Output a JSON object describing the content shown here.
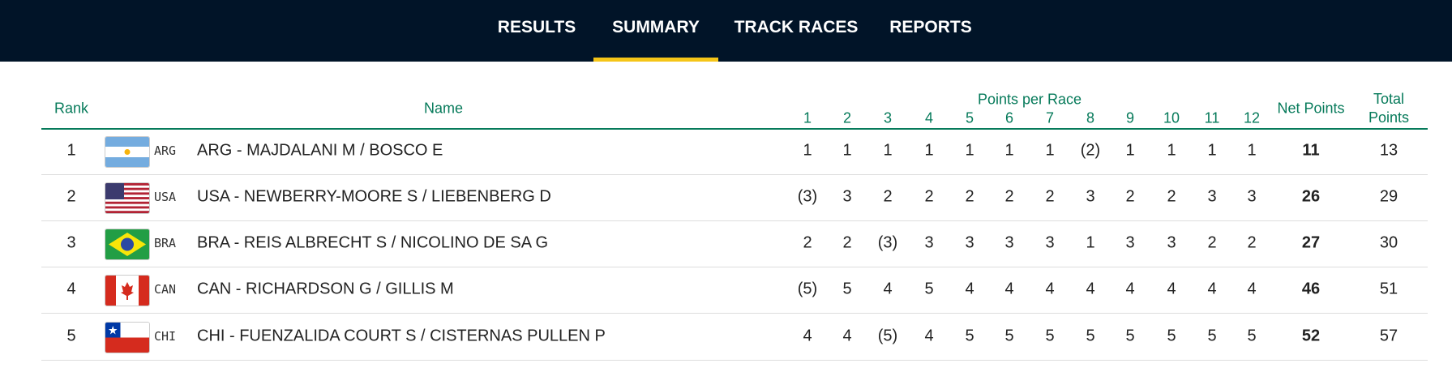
{
  "nav": {
    "items": [
      "RESULTS",
      "SUMMARY",
      "TRACK RACES",
      "REPORTS"
    ]
  },
  "table": {
    "headers": {
      "rank": "Rank",
      "name": "Name",
      "points_per_race": "Points per Race",
      "races": [
        1,
        2,
        3,
        4,
        5,
        6,
        7,
        8,
        9,
        10,
        11,
        12
      ],
      "net": "Net Points",
      "total": "Total Points"
    },
    "rows": [
      {
        "rank": 1,
        "code": "ARG",
        "name": "ARG - MAJDALANI M / BOSCO E",
        "races": [
          1,
          1,
          1,
          1,
          1,
          1,
          1,
          "(2)",
          1,
          1,
          1,
          1
        ],
        "net": 11,
        "total": 13
      },
      {
        "rank": 2,
        "code": "USA",
        "name": "USA - NEWBERRY-MOORE S / LIEBENBERG D",
        "races": [
          "(3)",
          3,
          2,
          2,
          2,
          2,
          2,
          3,
          2,
          2,
          3,
          3
        ],
        "net": 26,
        "total": 29
      },
      {
        "rank": 3,
        "code": "BRA",
        "name": "BRA - REIS ALBRECHT S / NICOLINO DE SA G",
        "races": [
          2,
          2,
          "(3)",
          3,
          3,
          3,
          3,
          1,
          3,
          3,
          2,
          2
        ],
        "net": 27,
        "total": 30
      },
      {
        "rank": 4,
        "code": "CAN",
        "name": "CAN - RICHARDSON G / GILLIS M",
        "races": [
          "(5)",
          5,
          4,
          5,
          4,
          4,
          4,
          4,
          4,
          4,
          4,
          4
        ],
        "net": 46,
        "total": 51
      },
      {
        "rank": 5,
        "code": "CHI",
        "name": "CHI - FUENZALIDA COURT S / CISTERNAS PULLEN P",
        "races": [
          4,
          4,
          "(5)",
          4,
          5,
          5,
          5,
          5,
          5,
          5,
          5,
          5
        ],
        "net": 52,
        "total": 57
      }
    ]
  }
}
